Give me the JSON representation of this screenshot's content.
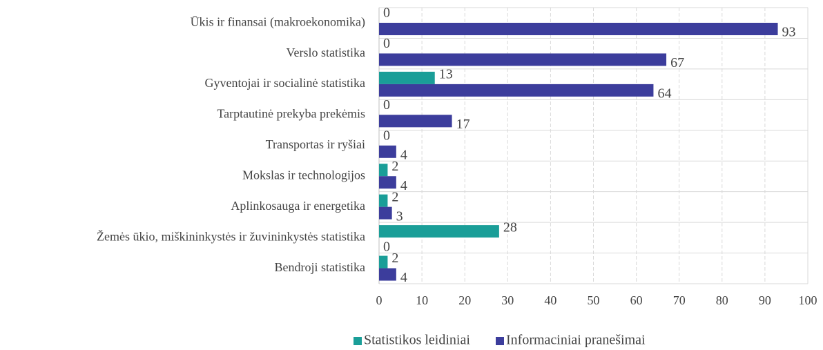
{
  "chart_data": {
    "type": "bar",
    "orientation": "horizontal",
    "categories": [
      "Ūkis ir finansai (makroekonomika)",
      "Verslo statistika",
      "Gyventojai ir socialinė statistika",
      "Tarptautinė prekyba prekėmis",
      "Transportas ir ryšiai",
      "Mokslas ir technologijos",
      "Aplinkosauga ir energetika",
      "Žemės ūkio, miškininkystės ir žuvininkystės statistika",
      "Bendroji statistika"
    ],
    "series": [
      {
        "name": "Statistikos leidiniai",
        "color": "#1a9e98",
        "values": [
          0,
          0,
          13,
          0,
          0,
          2,
          2,
          28,
          2
        ]
      },
      {
        "name": "Informaciniai pranešimai",
        "color": "#3c3d9c",
        "values": [
          93,
          67,
          64,
          17,
          4,
          4,
          3,
          0,
          4
        ]
      }
    ],
    "xlim": [
      0,
      100
    ],
    "xticks": [
      0,
      10,
      20,
      30,
      40,
      50,
      60,
      70,
      80,
      90,
      100
    ],
    "grid": true,
    "legend": "bottom"
  }
}
